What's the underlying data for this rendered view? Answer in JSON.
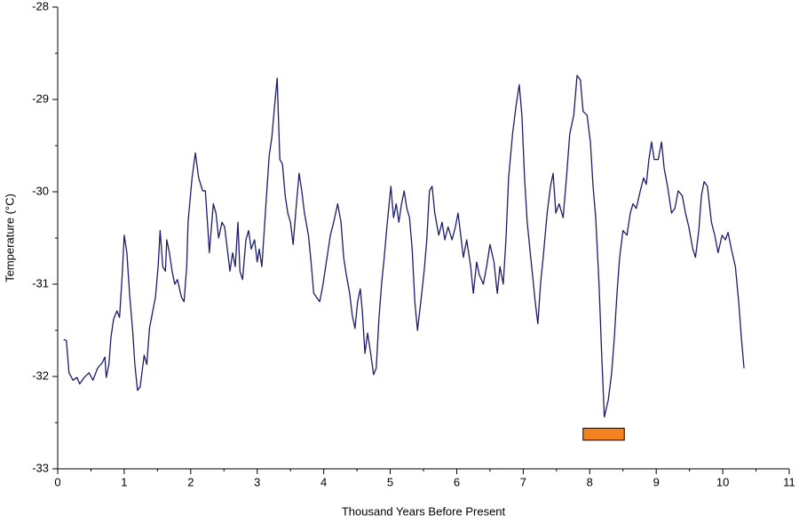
{
  "chart_data": {
    "type": "line",
    "x_label": "Thousand Years Before Present",
    "y_label": "Temperature (°C)",
    "xlim": [
      0,
      11
    ],
    "ylim": [
      -33,
      -28
    ],
    "xticks": [
      0,
      1,
      2,
      3,
      4,
      5,
      6,
      7,
      8,
      9,
      10,
      11
    ],
    "yticks": [
      -28,
      -29,
      -30,
      -31,
      -32,
      -33
    ],
    "xminor_ticks": [
      0.5,
      1.5,
      2.5,
      3.5,
      4.5,
      5.5,
      6.5,
      7.5,
      8.5,
      9.5,
      10.5
    ],
    "yminor_ticks": [
      -28.5,
      -29.5,
      -30.5,
      -31.5,
      -32.5
    ],
    "color": "#1c1c6b",
    "x": [
      0.09,
      0.13,
      0.17,
      0.23,
      0.29,
      0.33,
      0.4,
      0.47,
      0.53,
      0.6,
      0.67,
      0.71,
      0.73,
      0.77,
      0.8,
      0.84,
      0.89,
      0.93,
      0.97,
      1.0,
      1.04,
      1.08,
      1.13,
      1.16,
      1.2,
      1.24,
      1.3,
      1.34,
      1.38,
      1.43,
      1.47,
      1.51,
      1.54,
      1.58,
      1.62,
      1.64,
      1.68,
      1.72,
      1.76,
      1.8,
      1.86,
      1.9,
      1.94,
      1.96,
      2.02,
      2.07,
      2.12,
      2.18,
      2.22,
      2.26,
      2.28,
      2.34,
      2.38,
      2.42,
      2.47,
      2.51,
      2.55,
      2.59,
      2.63,
      2.67,
      2.71,
      2.74,
      2.78,
      2.83,
      2.87,
      2.91,
      2.96,
      3.0,
      3.03,
      3.07,
      3.14,
      3.18,
      3.22,
      3.26,
      3.3,
      3.34,
      3.38,
      3.42,
      3.46,
      3.5,
      3.54,
      3.59,
      3.63,
      3.67,
      3.71,
      3.77,
      3.81,
      3.85,
      3.89,
      3.94,
      3.99,
      4.05,
      4.1,
      4.15,
      4.21,
      4.26,
      4.3,
      4.34,
      4.39,
      4.43,
      4.47,
      4.51,
      4.55,
      4.58,
      4.62,
      4.66,
      4.71,
      4.75,
      4.79,
      4.83,
      4.87,
      4.91,
      4.95,
      5.01,
      5.05,
      5.09,
      5.13,
      5.17,
      5.21,
      5.25,
      5.29,
      5.33,
      5.37,
      5.41,
      5.46,
      5.51,
      5.55,
      5.59,
      5.63,
      5.67,
      5.73,
      5.78,
      5.82,
      5.87,
      5.93,
      5.98,
      6.02,
      6.06,
      6.1,
      6.15,
      6.21,
      6.25,
      6.3,
      6.34,
      6.4,
      6.45,
      6.5,
      6.56,
      6.61,
      6.65,
      6.7,
      6.74,
      6.78,
      6.84,
      6.89,
      6.94,
      6.98,
      7.02,
      7.06,
      7.1,
      7.14,
      7.18,
      7.22,
      7.26,
      7.3,
      7.36,
      7.41,
      7.45,
      7.49,
      7.54,
      7.6,
      7.65,
      7.7,
      7.76,
      7.81,
      7.86,
      7.9,
      7.96,
      8.01,
      8.05,
      8.09,
      8.14,
      8.18,
      8.22,
      8.28,
      8.33,
      8.37,
      8.41,
      8.45,
      8.5,
      8.56,
      8.61,
      8.65,
      8.7,
      8.76,
      8.81,
      8.85,
      8.89,
      8.93,
      8.97,
      9.03,
      9.08,
      9.12,
      9.17,
      9.23,
      9.28,
      9.33,
      9.39,
      9.44,
      9.49,
      9.55,
      9.59,
      9.64,
      9.68,
      9.72,
      9.77,
      9.83,
      9.88,
      9.93,
      9.99,
      10.04,
      10.08,
      10.13,
      10.19,
      10.24,
      10.28,
      10.32
    ],
    "values": [
      -31.6,
      -31.61,
      -31.96,
      -32.04,
      -32.01,
      -32.08,
      -32.01,
      -31.96,
      -32.04,
      -31.91,
      -31.85,
      -31.79,
      -32.01,
      -31.87,
      -31.58,
      -31.38,
      -31.29,
      -31.36,
      -30.9,
      -30.47,
      -30.66,
      -31.1,
      -31.53,
      -31.87,
      -32.15,
      -32.11,
      -31.77,
      -31.87,
      -31.48,
      -31.29,
      -31.14,
      -30.81,
      -30.42,
      -30.81,
      -30.86,
      -30.52,
      -30.66,
      -30.86,
      -31.0,
      -30.95,
      -31.14,
      -31.19,
      -30.81,
      -30.33,
      -29.85,
      -29.58,
      -29.85,
      -29.99,
      -29.99,
      -30.42,
      -30.66,
      -30.13,
      -30.23,
      -30.5,
      -30.33,
      -30.38,
      -30.62,
      -30.86,
      -30.66,
      -30.81,
      -30.33,
      -30.86,
      -30.95,
      -30.52,
      -30.42,
      -30.62,
      -30.52,
      -30.76,
      -30.62,
      -30.81,
      -30.04,
      -29.61,
      -29.41,
      -29.08,
      -28.77,
      -29.65,
      -29.7,
      -30.04,
      -30.23,
      -30.33,
      -30.57,
      -30.13,
      -29.8,
      -29.99,
      -30.23,
      -30.47,
      -30.76,
      -31.1,
      -31.14,
      -31.19,
      -31.0,
      -30.71,
      -30.47,
      -30.33,
      -30.13,
      -30.33,
      -30.71,
      -30.9,
      -31.1,
      -31.34,
      -31.48,
      -31.19,
      -31.05,
      -31.29,
      -31.75,
      -31.53,
      -31.77,
      -31.98,
      -31.91,
      -31.38,
      -31.0,
      -30.71,
      -30.38,
      -29.94,
      -30.28,
      -30.13,
      -30.33,
      -30.13,
      -29.99,
      -30.18,
      -30.28,
      -30.62,
      -31.19,
      -31.5,
      -31.19,
      -30.86,
      -30.52,
      -29.99,
      -29.94,
      -30.23,
      -30.47,
      -30.33,
      -30.52,
      -30.38,
      -30.52,
      -30.38,
      -30.23,
      -30.47,
      -30.71,
      -30.52,
      -30.81,
      -31.1,
      -30.76,
      -30.9,
      -31.0,
      -30.81,
      -30.57,
      -30.76,
      -31.1,
      -30.81,
      -31.0,
      -30.52,
      -29.85,
      -29.37,
      -29.08,
      -28.84,
      -29.17,
      -29.85,
      -30.33,
      -30.62,
      -30.9,
      -31.19,
      -31.43,
      -31.0,
      -30.71,
      -30.23,
      -29.94,
      -29.8,
      -30.23,
      -30.13,
      -30.28,
      -29.85,
      -29.37,
      -29.17,
      -28.74,
      -28.79,
      -29.13,
      -29.17,
      -29.46,
      -29.94,
      -30.28,
      -31.0,
      -31.77,
      -32.44,
      -32.25,
      -31.96,
      -31.58,
      -31.1,
      -30.71,
      -30.42,
      -30.47,
      -30.23,
      -30.13,
      -30.18,
      -29.99,
      -29.85,
      -29.92,
      -29.65,
      -29.46,
      -29.65,
      -29.65,
      -29.46,
      -29.75,
      -29.94,
      -30.23,
      -30.18,
      -29.99,
      -30.04,
      -30.23,
      -30.38,
      -30.62,
      -30.71,
      -30.42,
      -30.04,
      -29.89,
      -29.94,
      -30.33,
      -30.47,
      -30.66,
      -30.47,
      -30.52,
      -30.44,
      -30.62,
      -30.81,
      -31.19,
      -31.58,
      -31.91
    ],
    "highlight": {
      "x": [
        7.9,
        8.52
      ],
      "y": [
        -32.69,
        -32.56
      ],
      "color": "#f58220"
    }
  }
}
